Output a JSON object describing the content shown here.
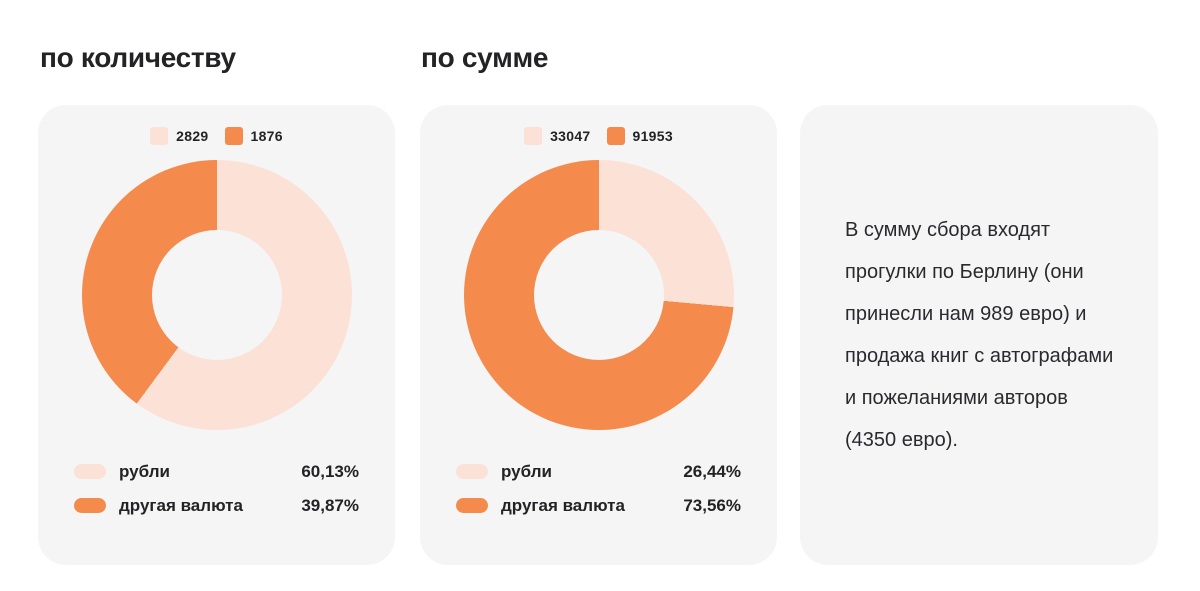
{
  "colors": {
    "orange": "#F48B4D",
    "pink": "#FCE1D6",
    "card_bg": "#F5F5F6",
    "page_bg": "#FFFFFF",
    "text_dark": "#232325"
  },
  "chart_data": [
    {
      "type": "pie",
      "variant": "donut",
      "title": "по количеству",
      "categories": [
        "рубли",
        "другая валюта"
      ],
      "values": [
        2829,
        1876
      ],
      "value_labels": [
        "2829",
        "1876"
      ],
      "percentages": [
        60.13,
        39.87
      ],
      "percent_labels": [
        "60,13%",
        "39,87%"
      ],
      "colors": [
        "#FCE1D6",
        "#F48B4D"
      ],
      "start_angle": "top",
      "direction": "clockwise",
      "legend_position": "top-values, bottom-percentages"
    },
    {
      "type": "pie",
      "variant": "donut",
      "title": "по сумме",
      "categories": [
        "рубли",
        "другая валюта"
      ],
      "values": [
        33047,
        91953
      ],
      "value_labels": [
        "33047",
        "91953"
      ],
      "percentages": [
        26.44,
        73.56
      ],
      "percent_labels": [
        "26,44%",
        "73,56%"
      ],
      "colors": [
        "#FCE1D6",
        "#F48B4D"
      ],
      "start_angle": "top",
      "direction": "clockwise",
      "legend_position": "top-values, bottom-percentages"
    }
  ],
  "note": {
    "text": "В сумму сбора входят прогулки по Берлину (они принесли нам 989 евро) и продажа книг с автографами и пожеланиями авторов (4350 евро)."
  }
}
